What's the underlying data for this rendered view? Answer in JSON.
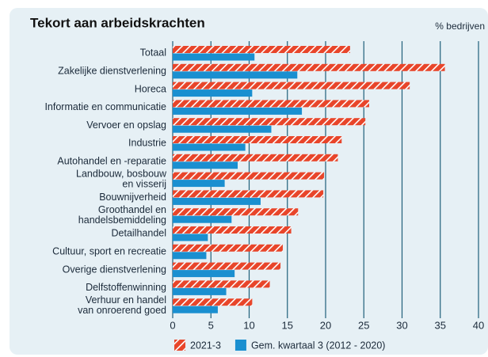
{
  "chart_data": {
    "type": "hbar",
    "title": "Tekort aan arbeidskrachten",
    "x_label": "% bedrijven",
    "categories": [
      "Totaal",
      "Zakelijke dienstverlening",
      "Horeca",
      "Informatie en communicatie",
      "Vervoer en opslag",
      "Industrie",
      "Autohandel en -reparatie",
      "Landbouw, bosbouw\nen visserij",
      "Bouwnijverheid",
      "Groothandel en\nhandelsbemiddeling",
      "Detailhandel",
      "Cultuur, sport en recreatie",
      "Overige dienstverlening",
      "Delfstoffenwinning",
      "Verhuur en handel\nvan onroerend goed"
    ],
    "series": [
      {
        "name": "2021-3",
        "color": "#e8452a",
        "hatch": true,
        "values": [
          23.2,
          35.6,
          31.0,
          25.7,
          25.2,
          22.1,
          21.6,
          19.8,
          19.7,
          16.4,
          15.5,
          14.4,
          14.1,
          12.7,
          10.4
        ]
      },
      {
        "name": "Gem. kwartaal 3 (2012 - 2020)",
        "color": "#1a8fd0",
        "hatch": false,
        "values": [
          10.7,
          16.3,
          10.4,
          16.9,
          12.9,
          9.5,
          8.5,
          6.8,
          11.5,
          7.7,
          4.6,
          4.4,
          8.1,
          7.0,
          5.9
        ]
      }
    ],
    "xlim": [
      0,
      40
    ],
    "xticks": [
      0,
      5,
      10,
      15,
      20,
      25,
      30,
      35,
      40
    ],
    "grid": true
  }
}
